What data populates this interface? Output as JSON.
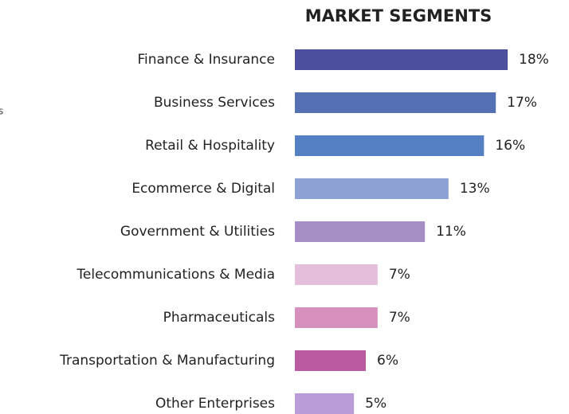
{
  "chart_data": {
    "type": "barh",
    "title": "MARKET SEGMENTS",
    "fragment": "s",
    "categories": [
      "Finance & Insurance",
      "Business Services",
      "Retail & Hospitality",
      "Ecommerce & Digital",
      "Government & Utilities",
      "Telecommunications & Media",
      "Pharmaceuticals",
      "Transportation & Manufacturing",
      "Other Enterprises"
    ],
    "values": [
      18,
      17,
      16,
      13,
      11,
      7,
      7,
      6,
      5
    ],
    "value_labels": [
      "18%",
      "17%",
      "16%",
      "13%",
      "11%",
      "7%",
      "7%",
      "6%",
      "5%"
    ],
    "colors": [
      "#4b4f9d",
      "#5570b3",
      "#5581c4",
      "#8ea1d4",
      "#a58ec4",
      "#e4bfdc",
      "#d690bd",
      "#ba5aa0",
      "#b99cd8"
    ]
  }
}
